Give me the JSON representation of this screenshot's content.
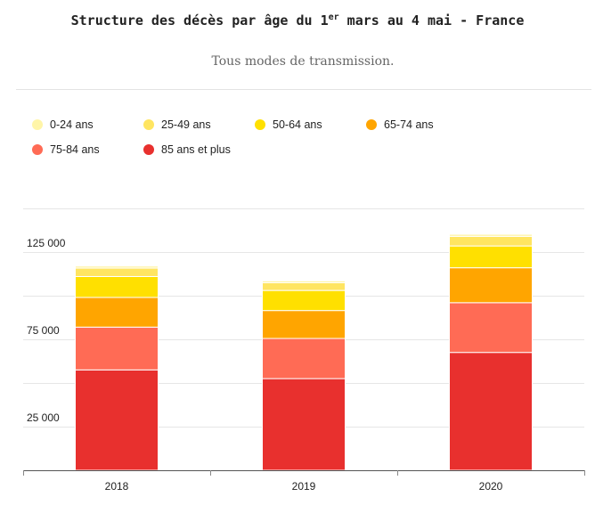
{
  "header": {
    "title_pre": "Structure des décès par âge du 1",
    "title_sup": "er",
    "title_post": " mars au 4 mai - France",
    "subtitle": "Tous modes de transmission."
  },
  "chart_data": {
    "type": "bar",
    "stacked": true,
    "title": "Structure des décès par âge du 1er mars au 4 mai - France",
    "subtitle": "Tous modes de transmission.",
    "categories": [
      "2018",
      "2019",
      "2020"
    ],
    "series": [
      {
        "name": "0-24 ans",
        "color": "#fff5a8",
        "values": [
          1200,
          1100,
          1200
        ]
      },
      {
        "name": "25-49 ans",
        "color": "#ffe561",
        "values": [
          4800,
          4400,
          5500
        ]
      },
      {
        "name": "50-64 ans",
        "color": "#ffe000",
        "values": [
          12000,
          11500,
          12500
        ]
      },
      {
        "name": "65-74 ans",
        "color": "#ffa500",
        "values": [
          17000,
          16000,
          20000
        ]
      },
      {
        "name": "75-84 ans",
        "color": "#ff6b55",
        "values": [
          24500,
          23000,
          28500
        ]
      },
      {
        "name": "85 ans et plus",
        "color": "#e8302e",
        "values": [
          57500,
          52500,
          67500
        ]
      }
    ],
    "yticks": [
      25000,
      75000,
      125000
    ],
    "ytick_labels": [
      "25 000",
      "75 000",
      "125 000"
    ],
    "ylim": [
      0,
      150000
    ],
    "grid": true,
    "legend_position": "top-left"
  }
}
